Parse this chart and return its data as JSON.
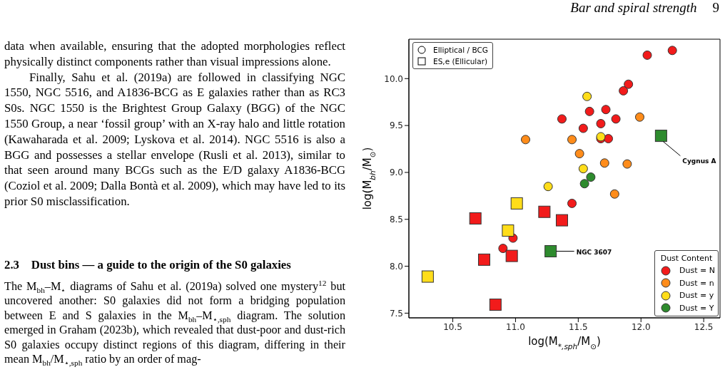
{
  "chart_data": {
    "type": "scatter",
    "xlabel": "log(M$_{*,sph}$/M$_{⊙}$)",
    "ylabel": "log(M$_{bh}$/M$_{⊙}$)",
    "legend_title": "Dust Content",
    "legend": "bottom right",
    "grid": false,
    "xlim": [
      10.15,
      12.63
    ],
    "xticks": [
      10.5,
      {
        "value": 11,
        "label": "11.0"
      },
      11.5,
      {
        "value": 12,
        "label": "12.0"
      },
      12.5
    ],
    "ylim": [
      7.45,
      10.42
    ],
    "yticks": [
      7.5,
      {
        "value": 8,
        "label": "8.0"
      },
      8.5,
      {
        "value": 9,
        "label": "9.0"
      },
      9.5,
      {
        "value": 10,
        "label": "10.0"
      }
    ],
    "series": [
      {
        "name": "Dust = N",
        "color": "#f21b1b",
        "marker": "circle",
        "x": [
          12.05,
          12.25,
          11.9,
          11.86,
          11.59,
          11.72,
          11.37,
          11.8,
          11.68,
          11.54,
          11.68,
          11.74,
          11.45,
          10.98,
          10.9
        ],
        "values": [
          10.25,
          10.3,
          9.94,
          9.87,
          9.65,
          9.67,
          9.57,
          9.57,
          9.52,
          9.47,
          9.36,
          9.36,
          8.67,
          8.3,
          8.19
        ]
      },
      {
        "name": "Dust = n",
        "color": "#ff8c1a",
        "marker": "circle",
        "x": [
          11.99,
          11.08,
          11.45,
          11.51,
          11.71,
          11.89,
          11.79
        ],
        "values": [
          9.59,
          9.35,
          9.35,
          9.2,
          9.1,
          9.09,
          8.77
        ]
      },
      {
        "name": "Dust = y",
        "color": "#ffdd1a",
        "marker": "circle",
        "x": [
          11.57,
          11.68,
          11.54,
          11.26
        ],
        "values": [
          9.81,
          9.38,
          9.04,
          8.85
        ]
      },
      {
        "name": "Dust = Y",
        "color": "#2e8b2e",
        "marker": "circle",
        "x": [
          11.6,
          11.55
        ],
        "values": [
          8.95,
          8.88
        ]
      },
      {
        "marker": "square",
        "x": [
          11.01,
          11.23,
          10.68,
          11.37,
          10.94,
          11.28,
          10.75,
          10.97,
          10.3,
          10.84,
          12.16
        ],
        "values": [
          8.67,
          8.58,
          8.51,
          8.49,
          8.38,
          8.16,
          8.07,
          8.11,
          7.89,
          7.59,
          9.39
        ],
        "colors": [
          "#ffdd1a",
          "#f21b1b",
          "#f21b1b",
          "#f21b1b",
          "#ffdd1a",
          "#2e8b2e",
          "#f21b1b",
          "#f21b1b",
          "#ffdd1a",
          "#f21b1b",
          "#2e8b2e"
        ]
      }
    ],
    "annotations": [
      "Elliptical / BCG",
      "ES,e (Ellicular)",
      "Bar and spiral strength",
      "9",
      "data when available, ensuring that the adopted morphologies reflect physically distinct components rather than visual impressions alone.",
      "Finally, Sahu et al. (2019a) are followed in classifying NGC 1550, NGC 5516, and A1836-BCG as E galaxies rather than as RC3 S0s. NGC 1550 is the Brightest Group Galaxy (BGG) of the NGC 1550 Group, a near ‘fossil group’ with an X-ray halo and little rotation (Kawaharada et al. 2009; Lyskova et al. 2014). NGC 5516 is also a BGG and possesses a stellar envelope (Rusli et al. 2013), similar to that seen around many BCGs such as the E/D galaxy A1836-BCG (Coziol et al. 2009; Dalla Bontà et al. 2009), which may have led to its prior S0 misclassification.",
      "2.3    Dust bins — a guide to the origin of the S0 galaxies",
      "The M$_{bh}$–M$_{⋆}$ diagrams of Sahu et al. (2019a) solved one mystery$^{12}$ but uncovered another: S0 galaxies did not form a bridging population between E and S galaxies in the M$_{bh}$–M$_{⋆,sph}$ diagram. The solution emerged in Graham (2023b), which revealed that dust-poor and dust-rich S0 galaxies occupy distinct regions of this diagram, differing in their mean M$_{bh}$/M$_{⋆,sph}$ ratio by an order of mag-",
      {
        "text": "Cygnus A",
        "x": 12.16,
        "y": 9.39
      },
      {
        "text": "NGC 3607",
        "x": 11.28,
        "y": 8.16
      }
    ]
  }
}
